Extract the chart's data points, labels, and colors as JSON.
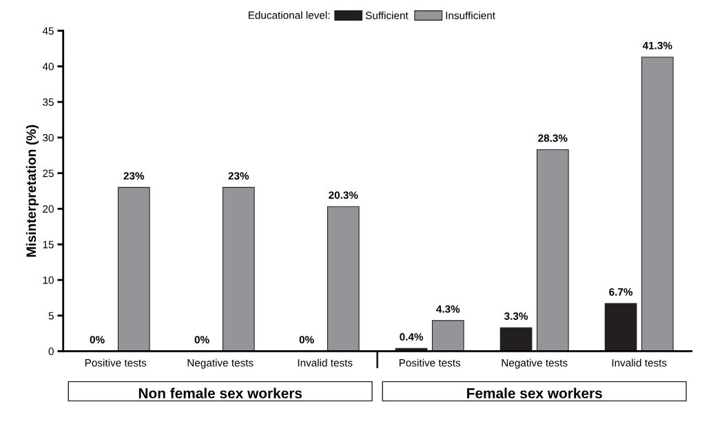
{
  "chart_data": {
    "type": "bar",
    "categories": [
      "Positive tests",
      "Negative tests",
      "Invalid tests",
      "Positive tests",
      "Negative tests",
      "Invalid tests"
    ],
    "series": [
      {
        "name": "Sufficient",
        "color": "#231f20",
        "values": [
          0,
          0,
          0,
          0.4,
          3.3,
          6.7
        ],
        "value_labels": [
          "0%",
          "0%",
          "0%",
          "0.4%",
          "3.3%",
          "6.7%"
        ]
      },
      {
        "name": "Insufficient",
        "color": "#939598",
        "values": [
          23,
          23,
          20.3,
          4.3,
          28.3,
          41.3
        ],
        "value_labels": [
          "23%",
          "23%",
          "20.3%",
          "4.3%",
          "28.3%",
          "41.3%"
        ]
      }
    ],
    "ylabel": "Misinterpretation (%)",
    "legend_title": "Educational level:",
    "ylim": [
      0,
      45
    ],
    "yticks": [
      0,
      5,
      10,
      15,
      20,
      25,
      30,
      35,
      40,
      45
    ],
    "annotations": [
      "Non female sex workers",
      "Female sex workers"
    ],
    "legend": "top",
    "grid": false
  }
}
